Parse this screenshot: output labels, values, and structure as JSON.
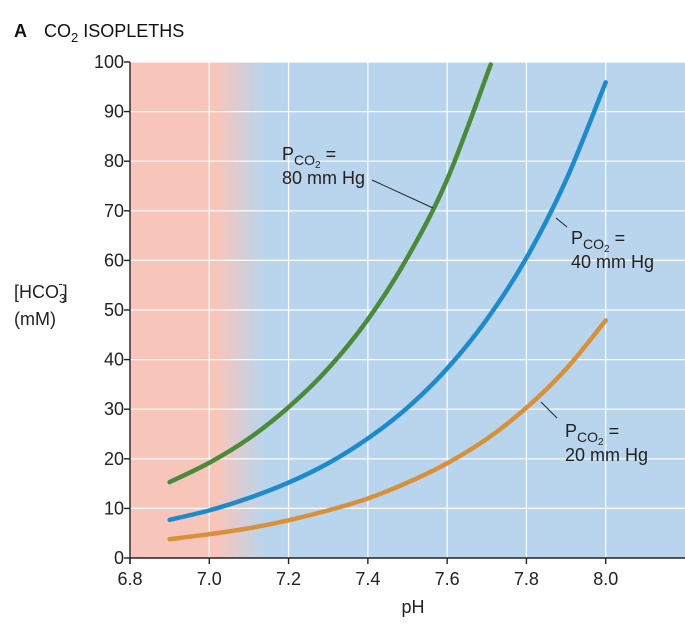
{
  "chart_data": {
    "type": "line",
    "panel_letter": "A",
    "title_parts": [
      "CO",
      "2",
      " ISOPLETHS"
    ],
    "xlabel": "pH",
    "ylabel": {
      "parts": [
        "[HCO",
        "3",
        "-",
        "]"
      ],
      "line2": "(mM)"
    },
    "xlim": [
      6.8,
      8.2
    ],
    "ylim": [
      0,
      100
    ],
    "x_ticks": [
      "6.8",
      "7.0",
      "7.2",
      "7.4",
      "7.6",
      "7.8",
      "8.0"
    ],
    "y_ticks": [
      "0",
      "10",
      "20",
      "30",
      "40",
      "50",
      "60",
      "70",
      "80",
      "90",
      "100"
    ],
    "grid": true,
    "background": {
      "acidic_color": "#f8c5bb",
      "main_color": "#b9d5ee"
    },
    "series": [
      {
        "name": "80 mm Hg",
        "label_prefix": "P",
        "label_sub": "CO",
        "label_sub2": "2",
        "label_eq": " =",
        "label_line2": "80 mm Hg",
        "color": "#4a8a3a",
        "x": [
          6.9,
          7.0,
          7.1,
          7.2,
          7.3,
          7.4,
          7.5,
          7.6,
          7.71
        ],
        "y": [
          15.3,
          19.2,
          24.1,
          30.4,
          38.2,
          48.1,
          60.6,
          76.3,
          99.5
        ]
      },
      {
        "name": "40 mm Hg",
        "label_prefix": "P",
        "label_sub": "CO",
        "label_sub2": "2",
        "label_eq": " =",
        "label_line2": "40 mm Hg",
        "color": "#1d8bcb",
        "x": [
          6.9,
          7.0,
          7.1,
          7.2,
          7.3,
          7.4,
          7.5,
          7.6,
          7.7,
          7.8,
          7.9,
          8.0
        ],
        "y": [
          7.7,
          9.6,
          12.1,
          15.2,
          19.1,
          24.1,
          30.3,
          38.2,
          48.1,
          60.5,
          76.2,
          95.9
        ]
      },
      {
        "name": "20 mm Hg",
        "label_prefix": "P",
        "label_sub": "CO",
        "label_sub2": "2",
        "label_eq": " =",
        "label_line2": "20 mm Hg",
        "color": "#d9903a",
        "x": [
          6.9,
          7.0,
          7.1,
          7.2,
          7.3,
          7.4,
          7.5,
          7.6,
          7.7,
          7.8,
          7.9,
          8.0
        ],
        "y": [
          3.8,
          4.8,
          6.0,
          7.6,
          9.6,
          12.0,
          15.2,
          19.1,
          24.0,
          30.3,
          38.1,
          47.9
        ]
      }
    ]
  }
}
